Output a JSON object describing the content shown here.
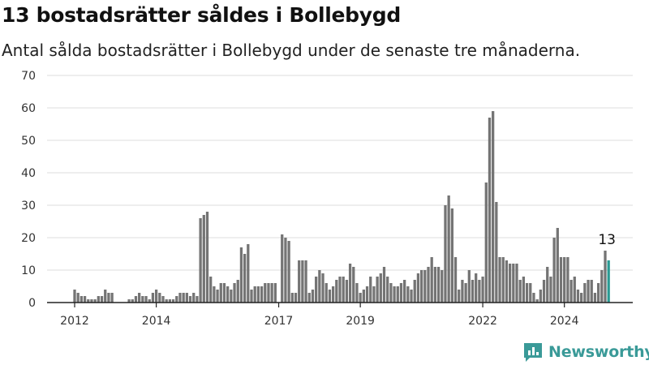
{
  "title": "13 bostadsrätter såldes i Bollebygd",
  "subtitle": "Antal sålda bostadsrätter i Bollebygd under de senaste tre månaderna.",
  "brand": "Newsworthy",
  "colors": {
    "bar": "#747474",
    "highlight": "#2a9a93",
    "grid": "#dcdcdc",
    "brand": "#3a9a98"
  },
  "chart_data": {
    "type": "bar",
    "x_start": "2012-01",
    "x_end": "2025-04",
    "x_ticks": [
      "2012",
      "2014",
      "2017",
      "2019",
      "2022",
      "2024"
    ],
    "y_ticks": [
      "0",
      "10",
      "20",
      "30",
      "40",
      "50",
      "60",
      "70"
    ],
    "ylim": [
      0,
      70
    ],
    "grid": true,
    "annotation": "13",
    "values": [
      4,
      3,
      2,
      2,
      1,
      1,
      1,
      2,
      2,
      4,
      3,
      3,
      0,
      0,
      0,
      0,
      1,
      1,
      2,
      3,
      2,
      2,
      1,
      3,
      4,
      3,
      2,
      1,
      1,
      1,
      2,
      3,
      3,
      3,
      2,
      3,
      2,
      26,
      27,
      28,
      8,
      5,
      4,
      6,
      6,
      5,
      4,
      6,
      7,
      17,
      15,
      18,
      4,
      5,
      5,
      5,
      6,
      6,
      6,
      6,
      0,
      21,
      20,
      19,
      3,
      3,
      13,
      13,
      13,
      3,
      4,
      8,
      10,
      9,
      6,
      4,
      5,
      7,
      8,
      8,
      7,
      12,
      11,
      6,
      3,
      4,
      5,
      8,
      5,
      8,
      9,
      11,
      8,
      6,
      5,
      5,
      6,
      7,
      5,
      4,
      7,
      9,
      10,
      10,
      11,
      14,
      11,
      11,
      10,
      30,
      33,
      29,
      14,
      4,
      7,
      6,
      10,
      7,
      9,
      7,
      8,
      37,
      57,
      59,
      31,
      14,
      14,
      13,
      12,
      12,
      12,
      7,
      8,
      6,
      6,
      3,
      1,
      4,
      7,
      11,
      8,
      20,
      23,
      14,
      14,
      14,
      7,
      8,
      4,
      3,
      6,
      7,
      7,
      3,
      6,
      10,
      16,
      13
    ]
  }
}
